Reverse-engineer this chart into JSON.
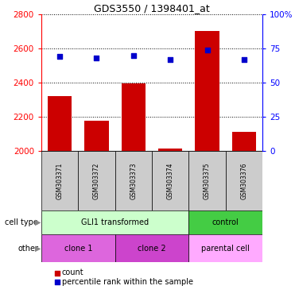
{
  "title": "GDS3550 / 1398401_at",
  "samples": [
    "GSM303371",
    "GSM303372",
    "GSM303373",
    "GSM303374",
    "GSM303375",
    "GSM303376"
  ],
  "counts": [
    2320,
    2175,
    2395,
    2015,
    2700,
    2110
  ],
  "percentile_ranks": [
    69,
    68,
    70,
    67,
    74,
    67
  ],
  "ylim_left": [
    2000,
    2800
  ],
  "ylim_right": [
    0,
    100
  ],
  "left_ticks": [
    2000,
    2200,
    2400,
    2600,
    2800
  ],
  "right_ticks": [
    0,
    25,
    50,
    75,
    100
  ],
  "right_tick_labels": [
    "0",
    "25",
    "50",
    "75",
    "100%"
  ],
  "bar_color": "#cc0000",
  "marker_color": "#0000cc",
  "cell_type_label": "cell type",
  "other_label": "other",
  "cell_type_groups": [
    {
      "label": "GLI1 transformed",
      "color": "#ccffcc",
      "start": 0,
      "end": 4
    },
    {
      "label": "control",
      "color": "#44cc44",
      "start": 4,
      "end": 6
    }
  ],
  "other_groups": [
    {
      "label": "clone 1",
      "color": "#dd66dd",
      "start": 0,
      "end": 2
    },
    {
      "label": "clone 2",
      "color": "#cc44cc",
      "start": 2,
      "end": 4
    },
    {
      "label": "parental cell",
      "color": "#ffaaff",
      "start": 4,
      "end": 6
    }
  ],
  "background_color": "#ffffff",
  "sample_bg_color": "#cccccc"
}
